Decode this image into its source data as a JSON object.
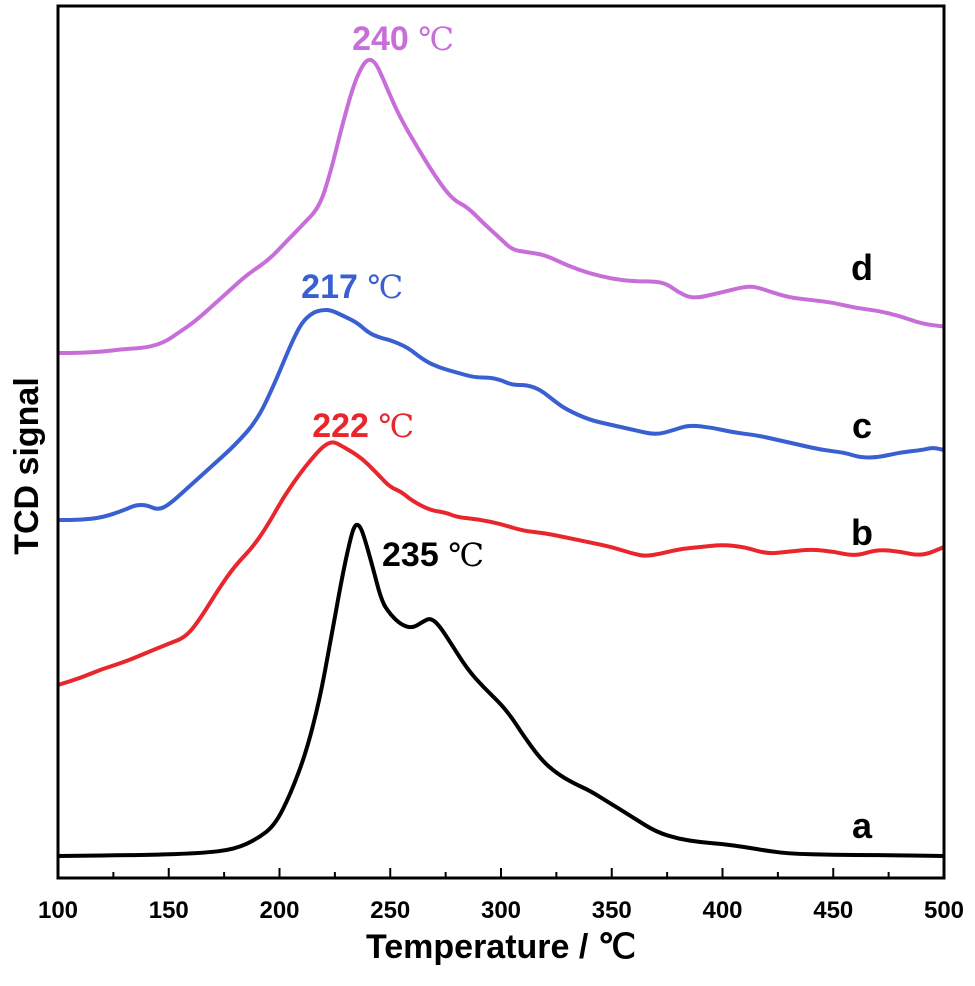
{
  "chart_data": {
    "type": "line",
    "xlabel": "Temperature / ℃",
    "ylabel": "TCD signal",
    "xlim": [
      100,
      500
    ],
    "x_ticks": [
      "100",
      "150",
      "200",
      "250",
      "300",
      "350",
      "400",
      "450",
      "500"
    ],
    "y_ticks_labeled": false,
    "grid": false,
    "legend": "none",
    "series": [
      {
        "name": "a",
        "color": "#000000",
        "peak_label": {
          "value": "235",
          "unit": "℃",
          "x": 235
        },
        "points": [
          [
            100,
            0.0
          ],
          [
            140,
            0.3
          ],
          [
            165,
            0.8
          ],
          [
            180,
            2
          ],
          [
            190,
            5
          ],
          [
            198,
            9
          ],
          [
            205,
            18
          ],
          [
            212,
            30
          ],
          [
            218,
            45
          ],
          [
            223,
            62
          ],
          [
            228,
            80
          ],
          [
            232,
            92
          ],
          [
            234,
            96
          ],
          [
            236,
            96
          ],
          [
            238,
            93
          ],
          [
            242,
            84
          ],
          [
            246,
            74
          ],
          [
            250,
            70
          ],
          [
            255,
            67
          ],
          [
            260,
            66
          ],
          [
            265,
            68
          ],
          [
            268,
            69
          ],
          [
            272,
            67
          ],
          [
            278,
            61
          ],
          [
            285,
            54
          ],
          [
            292,
            49
          ],
          [
            300,
            44
          ],
          [
            305,
            40
          ],
          [
            310,
            35
          ],
          [
            318,
            28
          ],
          [
            325,
            24
          ],
          [
            333,
            21
          ],
          [
            340,
            19
          ],
          [
            350,
            15
          ],
          [
            360,
            11
          ],
          [
            370,
            7
          ],
          [
            380,
            5
          ],
          [
            390,
            4
          ],
          [
            400,
            3.5
          ],
          [
            410,
            2.6
          ],
          [
            420,
            1.5
          ],
          [
            430,
            0.7
          ],
          [
            450,
            0.3
          ],
          [
            470,
            0.3
          ],
          [
            500,
            0
          ]
        ]
      },
      {
        "name": "b",
        "color": "#e8262c",
        "peak_label": {
          "value": "222",
          "unit": "℃",
          "x": 222
        },
        "points": [
          [
            100,
            0
          ],
          [
            110,
            3
          ],
          [
            120,
            7
          ],
          [
            130,
            10
          ],
          [
            140,
            14
          ],
          [
            150,
            18
          ],
          [
            158,
            21
          ],
          [
            165,
            30
          ],
          [
            172,
            41
          ],
          [
            180,
            52
          ],
          [
            188,
            60
          ],
          [
            195,
            70
          ],
          [
            202,
            82
          ],
          [
            210,
            93
          ],
          [
            216,
            100
          ],
          [
            220,
            104
          ],
          [
            224,
            106
          ],
          [
            228,
            104
          ],
          [
            235,
            100
          ],
          [
            240,
            96
          ],
          [
            245,
            91
          ],
          [
            250,
            86
          ],
          [
            255,
            84
          ],
          [
            260,
            80
          ],
          [
            268,
            76
          ],
          [
            275,
            75
          ],
          [
            280,
            73
          ],
          [
            290,
            72
          ],
          [
            300,
            70
          ],
          [
            310,
            67
          ],
          [
            320,
            66
          ],
          [
            330,
            64
          ],
          [
            340,
            62
          ],
          [
            350,
            60
          ],
          [
            360,
            57
          ],
          [
            365,
            56
          ],
          [
            372,
            57
          ],
          [
            380,
            59
          ],
          [
            390,
            60
          ],
          [
            400,
            61
          ],
          [
            410,
            60
          ],
          [
            420,
            57
          ],
          [
            430,
            58
          ],
          [
            440,
            59
          ],
          [
            450,
            58
          ],
          [
            460,
            56
          ],
          [
            470,
            59
          ],
          [
            480,
            58
          ],
          [
            490,
            56
          ],
          [
            500,
            60
          ]
        ]
      },
      {
        "name": "c",
        "color": "#3a5fd0",
        "peak_label": {
          "value": "217",
          "unit": "℃",
          "x": 217
        },
        "points": [
          [
            100,
            0
          ],
          [
            110,
            0
          ],
          [
            120,
            1
          ],
          [
            130,
            4
          ],
          [
            135,
            6
          ],
          [
            140,
            6
          ],
          [
            145,
            4
          ],
          [
            150,
            6
          ],
          [
            160,
            14
          ],
          [
            170,
            22
          ],
          [
            180,
            30
          ],
          [
            190,
            40
          ],
          [
            198,
            55
          ],
          [
            205,
            70
          ],
          [
            210,
            79
          ],
          [
            215,
            83
          ],
          [
            219,
            84
          ],
          [
            223,
            84
          ],
          [
            228,
            82
          ],
          [
            235,
            79
          ],
          [
            240,
            75
          ],
          [
            245,
            73
          ],
          [
            250,
            72
          ],
          [
            258,
            69
          ],
          [
            265,
            64
          ],
          [
            272,
            61
          ],
          [
            280,
            59
          ],
          [
            288,
            57
          ],
          [
            295,
            57
          ],
          [
            300,
            56
          ],
          [
            305,
            54
          ],
          [
            312,
            54
          ],
          [
            318,
            52
          ],
          [
            325,
            47
          ],
          [
            330,
            44
          ],
          [
            340,
            40
          ],
          [
            350,
            38
          ],
          [
            360,
            36
          ],
          [
            370,
            34
          ],
          [
            378,
            36
          ],
          [
            385,
            38
          ],
          [
            395,
            37
          ],
          [
            405,
            35
          ],
          [
            415,
            34
          ],
          [
            425,
            32
          ],
          [
            435,
            30
          ],
          [
            445,
            28
          ],
          [
            455,
            27
          ],
          [
            462,
            25
          ],
          [
            470,
            25
          ],
          [
            480,
            27
          ],
          [
            490,
            28
          ],
          [
            495,
            29
          ],
          [
            500,
            28
          ]
        ]
      },
      {
        "name": "d",
        "color": "#c86ed8",
        "peak_label": {
          "value": "240",
          "unit": "℃",
          "x": 240
        },
        "points": [
          [
            100,
            0
          ],
          [
            110,
            0
          ],
          [
            120,
            0.5
          ],
          [
            130,
            1.5
          ],
          [
            140,
            2
          ],
          [
            148,
            4
          ],
          [
            155,
            8
          ],
          [
            162,
            12
          ],
          [
            170,
            18
          ],
          [
            178,
            24
          ],
          [
            186,
            30
          ],
          [
            195,
            35
          ],
          [
            203,
            42
          ],
          [
            210,
            48
          ],
          [
            218,
            55
          ],
          [
            223,
            68
          ],
          [
            228,
            85
          ],
          [
            233,
            100
          ],
          [
            237,
            108
          ],
          [
            240,
            111
          ],
          [
            243,
            110
          ],
          [
            246,
            105
          ],
          [
            250,
            97
          ],
          [
            255,
            88
          ],
          [
            262,
            78
          ],
          [
            270,
            67
          ],
          [
            278,
            58
          ],
          [
            285,
            55
          ],
          [
            292,
            49
          ],
          [
            300,
            43
          ],
          [
            305,
            39
          ],
          [
            312,
            38
          ],
          [
            320,
            37
          ],
          [
            330,
            33
          ],
          [
            340,
            30
          ],
          [
            350,
            28
          ],
          [
            360,
            27
          ],
          [
            370,
            27
          ],
          [
            375,
            26
          ],
          [
            380,
            23
          ],
          [
            385,
            21
          ],
          [
            390,
            21
          ],
          [
            395,
            22
          ],
          [
            400,
            23
          ],
          [
            410,
            25
          ],
          [
            415,
            25
          ],
          [
            422,
            23
          ],
          [
            430,
            21
          ],
          [
            440,
            20
          ],
          [
            450,
            19
          ],
          [
            460,
            17
          ],
          [
            470,
            16
          ],
          [
            480,
            14
          ],
          [
            490,
            11
          ],
          [
            500,
            10
          ]
        ]
      }
    ]
  }
}
